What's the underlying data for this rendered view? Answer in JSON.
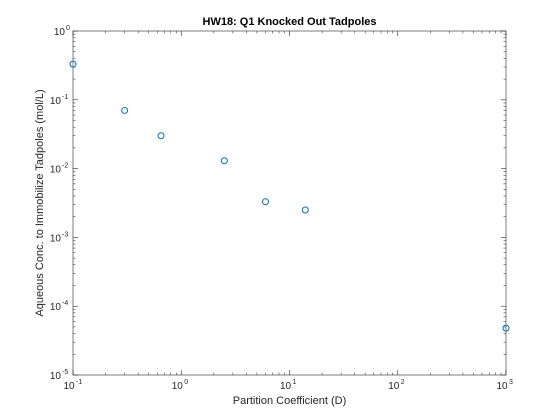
{
  "chart_data": {
    "type": "scatter",
    "title": "HW18: Q1 Knocked Out Tadpoles",
    "xlabel": "Partition Coefficient (D)",
    "ylabel": "Aqueous Conc. to Immobilize Tadpoles (mol/L)",
    "xscale": "log",
    "yscale": "log",
    "xlim": [
      0.1,
      1000
    ],
    "ylim": [
      1e-05,
      1
    ],
    "grid": false,
    "legend": "none",
    "marker": "open-circle",
    "marker_color": "#0072BD",
    "x_ticks": [
      {
        "base": "10",
        "exp": "-1",
        "value": 0.1
      },
      {
        "base": "10",
        "exp": "0",
        "value": 1
      },
      {
        "base": "10",
        "exp": "1",
        "value": 10
      },
      {
        "base": "10",
        "exp": "2",
        "value": 100
      },
      {
        "base": "10",
        "exp": "3",
        "value": 1000
      }
    ],
    "y_ticks": [
      {
        "base": "10",
        "exp": "0",
        "value": 1
      },
      {
        "base": "10",
        "exp": "-1",
        "value": 0.1
      },
      {
        "base": "10",
        "exp": "-2",
        "value": 0.01
      },
      {
        "base": "10",
        "exp": "-3",
        "value": 0.001
      },
      {
        "base": "10",
        "exp": "-4",
        "value": 0.0001
      },
      {
        "base": "10",
        "exp": "-5",
        "value": 1e-05
      }
    ],
    "points": [
      {
        "x": 0.1,
        "y": 0.33
      },
      {
        "x": 0.3,
        "y": 0.07
      },
      {
        "x": 0.65,
        "y": 0.03
      },
      {
        "x": 2.5,
        "y": 0.013
      },
      {
        "x": 6,
        "y": 0.0033
      },
      {
        "x": 14,
        "y": 0.0025
      },
      {
        "x": 1000,
        "y": 4.8e-05
      }
    ]
  }
}
